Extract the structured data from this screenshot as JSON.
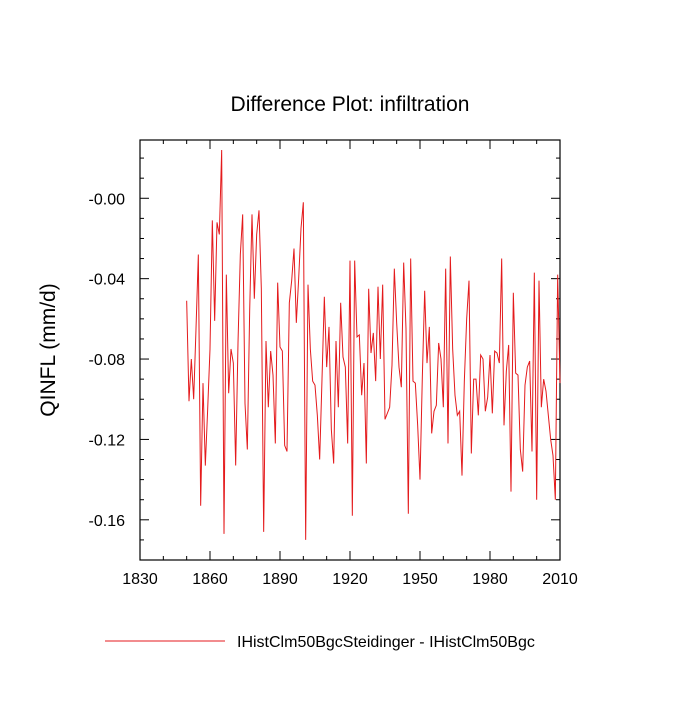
{
  "chart_data": {
    "type": "line",
    "title": "Difference Plot: infiltration",
    "ylabel": "QINFL  (mm/d)",
    "xlabel": "",
    "xlim": [
      1830,
      2010
    ],
    "ylim": [
      -0.18,
      0.029
    ],
    "x_ticks": [
      1830,
      1860,
      1890,
      1920,
      1950,
      1980,
      2010
    ],
    "y_ticks": [
      -0.16,
      -0.12,
      -0.08,
      -0.04,
      0.0
    ],
    "x_tick_labels": [
      "1830",
      "1860",
      "1890",
      "1920",
      "1950",
      "1980",
      "2010"
    ],
    "y_tick_labels": [
      "-0.16",
      "-0.12",
      "-0.08",
      "-0.04",
      "-0.00"
    ],
    "grid": false,
    "legend_position": "bottom",
    "series": [
      {
        "name": "IHistClm50BgcSteidinger - IHistClm50Bgc",
        "color": "#e41a1c",
        "x": [
          1850,
          1851,
          1852,
          1853,
          1854,
          1855,
          1856,
          1857,
          1858,
          1859,
          1860,
          1861,
          1862,
          1863,
          1864,
          1865,
          1866,
          1867,
          1868,
          1869,
          1870,
          1871,
          1872,
          1873,
          1874,
          1875,
          1876,
          1877,
          1878,
          1879,
          1880,
          1881,
          1882,
          1883,
          1884,
          1885,
          1886,
          1887,
          1888,
          1889,
          1890,
          1891,
          1892,
          1893,
          1894,
          1895,
          1896,
          1897,
          1898,
          1899,
          1900,
          1901,
          1902,
          1903,
          1904,
          1905,
          1906,
          1907,
          1908,
          1909,
          1910,
          1911,
          1912,
          1913,
          1914,
          1915,
          1916,
          1917,
          1918,
          1919,
          1920,
          1921,
          1922,
          1923,
          1924,
          1925,
          1926,
          1927,
          1928,
          1929,
          1930,
          1931,
          1932,
          1933,
          1934,
          1935,
          1936,
          1937,
          1938,
          1939,
          1940,
          1941,
          1942,
          1943,
          1944,
          1945,
          1946,
          1947,
          1948,
          1949,
          1950,
          1951,
          1952,
          1953,
          1954,
          1955,
          1956,
          1957,
          1958,
          1959,
          1960,
          1961,
          1962,
          1963,
          1964,
          1965,
          1966,
          1967,
          1968,
          1969,
          1970,
          1971,
          1972,
          1973,
          1974,
          1975,
          1976,
          1977,
          1978,
          1979,
          1980,
          1981,
          1982,
          1983,
          1984,
          1985,
          1986,
          1987,
          1988,
          1989,
          1990,
          1991,
          1992,
          1993,
          1994,
          1995,
          1996,
          1997,
          1998,
          1999,
          2000,
          2001,
          2002,
          2003,
          2004,
          2005,
          2006,
          2007,
          2008,
          2009,
          2010
        ],
        "y": [
          -0.051,
          -0.101,
          -0.08,
          -0.1,
          -0.065,
          -0.028,
          -0.153,
          -0.092,
          -0.133,
          -0.105,
          -0.075,
          -0.011,
          -0.061,
          -0.012,
          -0.018,
          0.024,
          -0.167,
          -0.038,
          -0.097,
          -0.075,
          -0.082,
          -0.133,
          -0.072,
          -0.028,
          -0.008,
          -0.102,
          -0.125,
          -0.056,
          -0.008,
          -0.05,
          -0.018,
          -0.006,
          -0.045,
          -0.166,
          -0.071,
          -0.104,
          -0.076,
          -0.088,
          -0.122,
          -0.042,
          -0.074,
          -0.076,
          -0.123,
          -0.126,
          -0.052,
          -0.041,
          -0.025,
          -0.062,
          -0.04,
          -0.015,
          -0.002,
          -0.17,
          -0.043,
          -0.075,
          -0.091,
          -0.093,
          -0.108,
          -0.13,
          -0.09,
          -0.049,
          -0.084,
          -0.064,
          -0.115,
          -0.132,
          -0.071,
          -0.104,
          -0.052,
          -0.079,
          -0.084,
          -0.122,
          -0.031,
          -0.158,
          -0.031,
          -0.069,
          -0.068,
          -0.098,
          -0.082,
          -0.132,
          -0.045,
          -0.077,
          -0.067,
          -0.091,
          -0.044,
          -0.08,
          -0.043,
          -0.11,
          -0.107,
          -0.104,
          -0.083,
          -0.035,
          -0.062,
          -0.084,
          -0.094,
          -0.032,
          -0.065,
          -0.157,
          -0.03,
          -0.091,
          -0.092,
          -0.113,
          -0.14,
          -0.089,
          -0.046,
          -0.082,
          -0.064,
          -0.117,
          -0.106,
          -0.103,
          -0.072,
          -0.08,
          -0.104,
          -0.035,
          -0.122,
          -0.029,
          -0.075,
          -0.098,
          -0.108,
          -0.106,
          -0.138,
          -0.091,
          -0.06,
          -0.041,
          -0.127,
          -0.09,
          -0.09,
          -0.108,
          -0.078,
          -0.08,
          -0.106,
          -0.099,
          -0.078,
          -0.107,
          -0.076,
          -0.077,
          -0.082,
          -0.03,
          -0.113,
          -0.086,
          -0.073,
          -0.146,
          -0.047,
          -0.087,
          -0.088,
          -0.125,
          -0.136,
          -0.093,
          -0.084,
          -0.081,
          -0.126,
          -0.037,
          -0.15,
          -0.041,
          -0.104,
          -0.09,
          -0.096,
          -0.108,
          -0.12,
          -0.128,
          -0.15,
          -0.038,
          -0.092
        ]
      }
    ]
  }
}
